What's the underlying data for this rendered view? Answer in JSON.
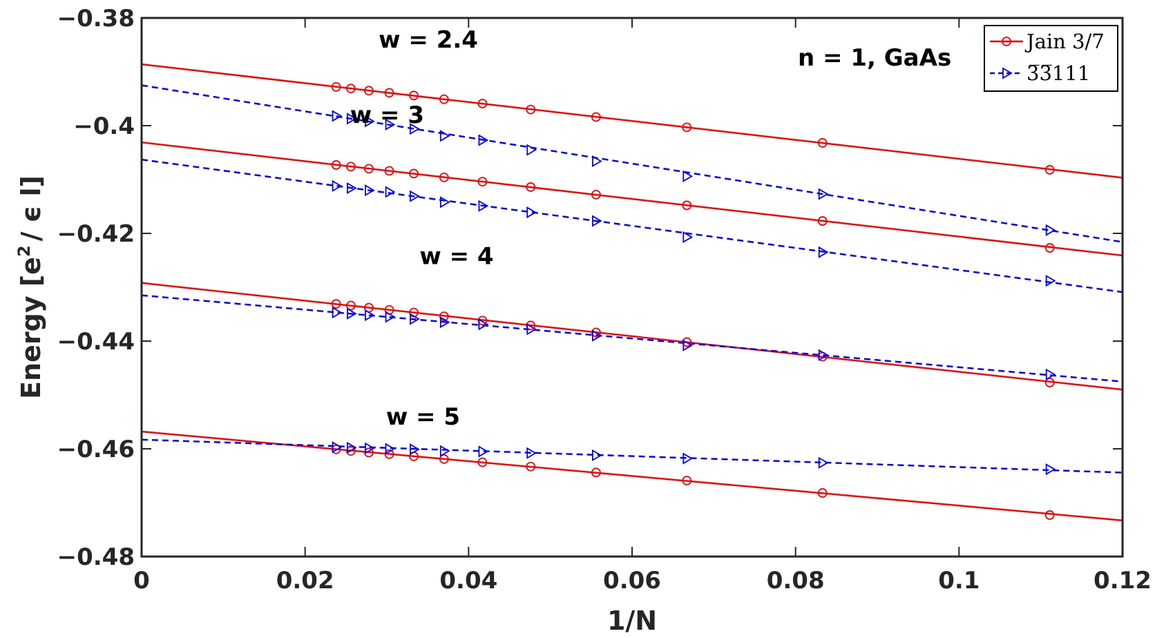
{
  "chart_data": {
    "type": "line",
    "xlabel": "1/N",
    "ylabel_main": "Energy [e",
    "ylabel_sup": "2",
    "ylabel_rest": "/ ϵ l]",
    "xlim": [
      0,
      0.12
    ],
    "ylim": [
      -0.48,
      -0.38
    ],
    "xticks": [
      0,
      0.02,
      0.04,
      0.06,
      0.08,
      0.1,
      0.12
    ],
    "xtick_labels": [
      "0",
      "0.02",
      "0.04",
      "0.06",
      "0.08",
      "0.1",
      "0.12"
    ],
    "yticks": [
      -0.48,
      -0.46,
      -0.44,
      -0.42,
      -0.4,
      -0.38
    ],
    "ytick_labels": [
      "−0.48",
      "−0.46",
      "−0.44",
      "−0.42",
      "−0.4",
      "−0.38"
    ],
    "annotation": "n = 1, GaAs",
    "legend": [
      {
        "label": "Jain 3/7",
        "color": "#ff0000",
        "marker": "circle",
        "style": "solid"
      },
      {
        "label": "3̅3̅111",
        "color": "#0000ff",
        "marker": "triangle-right",
        "style": "dashed"
      }
    ],
    "x_points": [
      0.1111,
      0.0833,
      0.0667,
      0.0556,
      0.0476,
      0.0417,
      0.037,
      0.0333,
      0.0303,
      0.0278,
      0.0256,
      0.0238
    ],
    "groups": [
      {
        "label": "w = 2.4",
        "jain": {
          "intercept": -0.3886,
          "slope": -0.1755,
          "values": [
            -0.4082,
            -0.4032,
            -0.4003,
            -0.3984,
            -0.397,
            -0.3959,
            -0.3951,
            -0.3944,
            -0.3939,
            -0.3935,
            -0.3931,
            -0.3928
          ]
        },
        "other": {
          "intercept": -0.3925,
          "slope": -0.2425,
          "values": [
            -0.4194,
            -0.4127,
            -0.4094,
            -0.4066,
            -0.4045,
            -0.4027,
            -0.4019,
            -0.4006,
            -0.3998,
            -0.3992,
            -0.3987,
            -0.3982
          ]
        }
      },
      {
        "label": "w = 3",
        "jain": {
          "intercept": -0.4031,
          "slope": -0.175,
          "values": [
            -0.4227,
            -0.4177,
            -0.4148,
            -0.4128,
            -0.4114,
            -0.4104,
            -0.4096,
            -0.4089,
            -0.4084,
            -0.408,
            -0.4076,
            -0.4073
          ]
        },
        "other": {
          "intercept": -0.4063,
          "slope": -0.205,
          "values": [
            -0.4288,
            -0.4235,
            -0.4207,
            -0.4177,
            -0.4161,
            -0.4149,
            -0.4142,
            -0.4131,
            -0.4123,
            -0.412,
            -0.4116,
            -0.4112
          ]
        }
      },
      {
        "label": "w = 4",
        "jain": {
          "intercept": -0.4292,
          "slope": -0.165,
          "values": [
            -0.4477,
            -0.4429,
            -0.4402,
            -0.4384,
            -0.4371,
            -0.4362,
            -0.4354,
            -0.4347,
            -0.4342,
            -0.4338,
            -0.4334,
            -0.4331
          ]
        },
        "other": {
          "intercept": -0.4315,
          "slope": -0.1335,
          "values": [
            -0.4462,
            -0.4426,
            -0.4408,
            -0.439,
            -0.4378,
            -0.4369,
            -0.4365,
            -0.4359,
            -0.4355,
            -0.4352,
            -0.4349,
            -0.4347
          ]
        }
      },
      {
        "label": "w = 5",
        "jain": {
          "intercept": -0.4568,
          "slope": -0.1375,
          "values": [
            -0.4723,
            -0.4682,
            -0.4659,
            -0.4644,
            -0.4633,
            -0.4625,
            -0.4619,
            -0.4614,
            -0.461,
            -0.4607,
            -0.4604,
            -0.4601
          ]
        },
        "other": {
          "intercept": -0.4583,
          "slope": -0.051,
          "values": [
            -0.4638,
            -0.4626,
            -0.4618,
            -0.4612,
            -0.4608,
            -0.4605,
            -0.4604,
            -0.4601,
            -0.46,
            -0.4599,
            -0.4598,
            -0.4597
          ]
        }
      }
    ]
  }
}
